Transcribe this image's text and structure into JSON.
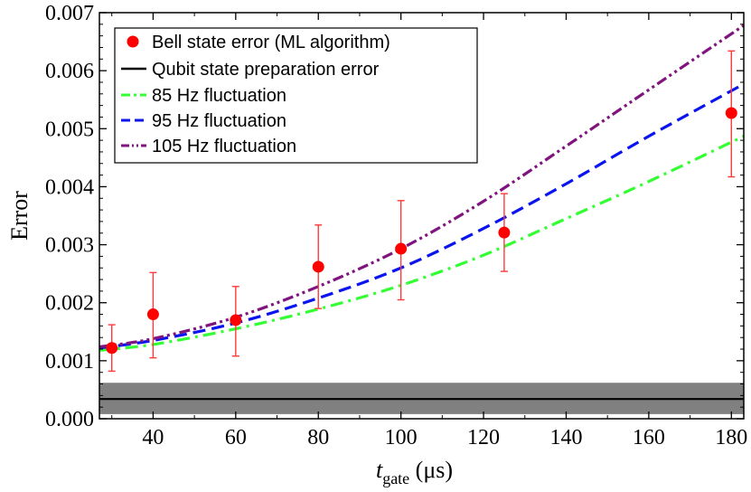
{
  "chart_data": {
    "type": "scatter",
    "title": "",
    "xlabel": "t_gate (μs)",
    "xlabel_parts": {
      "main": "t",
      "sub": "gate",
      "unit": " (μs)"
    },
    "ylabel": "Error",
    "xlim": [
      27,
      183
    ],
    "ylim": [
      0,
      0.007
    ],
    "xticks": [
      40,
      60,
      80,
      100,
      120,
      140,
      160,
      180
    ],
    "yticks": [
      0,
      0.001,
      0.002,
      0.003,
      0.004,
      0.005,
      0.006,
      0.007
    ],
    "ytick_labels": [
      "0.000",
      "0.001",
      "0.002",
      "0.003",
      "0.004",
      "0.005",
      "0.006",
      "0.007"
    ],
    "legend_position": "top-left",
    "points": {
      "name": "Bell state error (ML algorithm)",
      "color": "#ff0000",
      "errorbar_color": "#ff3a3a",
      "x": [
        30,
        40,
        60,
        80,
        100,
        125,
        180
      ],
      "y": [
        0.00122,
        0.0018,
        0.0017,
        0.00262,
        0.00293,
        0.00321,
        0.00527
      ],
      "err_low": [
        0.0004,
        0.00075,
        0.00062,
        0.00072,
        0.00088,
        0.00067,
        0.0011
      ],
      "err_high": [
        0.0004,
        0.00072,
        0.00058,
        0.00072,
        0.00083,
        0.00067,
        0.00107
      ]
    },
    "baseline": {
      "name": "Qubit state preparation error",
      "color": "#000000",
      "band_color": "#808080",
      "y": 0.00034,
      "band": [
        8e-05,
        0.00062
      ]
    },
    "series": [
      {
        "name": "85 Hz fluctuation",
        "color": "#33ff33",
        "style": "dashdot",
        "x": [
          27,
          40,
          60,
          80,
          100,
          120,
          140,
          160,
          183
        ],
        "y": [
          0.00118,
          0.00128,
          0.00155,
          0.00189,
          0.0023,
          0.00282,
          0.00345,
          0.00409,
          0.00487
        ]
      },
      {
        "name": "95 Hz fluctuation",
        "color": "#0a14ee",
        "style": "dashed",
        "x": [
          27,
          40,
          60,
          80,
          100,
          120,
          140,
          160,
          183
        ],
        "y": [
          0.00122,
          0.00135,
          0.00165,
          0.00208,
          0.0026,
          0.00328,
          0.00405,
          0.00487,
          0.00577
        ]
      },
      {
        "name": "105 Hz fluctuation",
        "color": "#80147f",
        "style": "dashdotdot",
        "x": [
          27,
          40,
          60,
          80,
          100,
          120,
          140,
          160,
          183
        ],
        "y": [
          0.00124,
          0.00138,
          0.00175,
          0.00228,
          0.00293,
          0.00375,
          0.0047,
          0.00567,
          0.00678
        ]
      }
    ]
  }
}
